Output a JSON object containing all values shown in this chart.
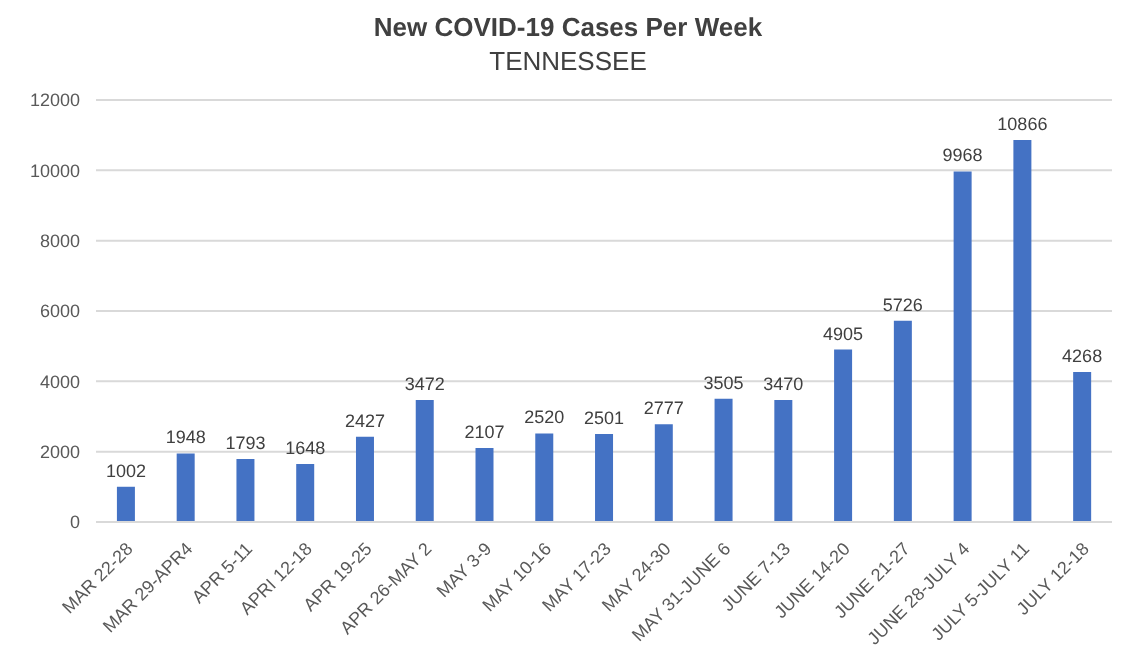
{
  "chart_data": {
    "type": "bar",
    "title": "New COVID-19 Cases Per Week",
    "subtitle": "TENNESSEE",
    "categories": [
      "MAR 22-28",
      "MAR 29-APR4",
      "APR 5-11",
      "APRI 12-18",
      "APR 19-25",
      "APR 26-MAY 2",
      "MAY 3-9",
      "MAY 10-16",
      "MAY 17-23",
      "MAY 24-30",
      "MAY 31-JUNE 6",
      "JUNE 7-13",
      "JUNE 14-20",
      "JUNE 21-27",
      "JUNE 28-JULY 4",
      "JULY 5-JULY 11",
      "JULY 12-18"
    ],
    "values": [
      1002,
      1948,
      1793,
      1648,
      2427,
      3472,
      2107,
      2520,
      2501,
      2777,
      3505,
      3470,
      4905,
      5726,
      9968,
      10866,
      4268
    ],
    "color": "#4472c4",
    "ylim": [
      0,
      12000
    ],
    "yticks": [
      0,
      2000,
      4000,
      6000,
      8000,
      10000,
      12000
    ],
    "grid": "y",
    "data_labels": true
  }
}
